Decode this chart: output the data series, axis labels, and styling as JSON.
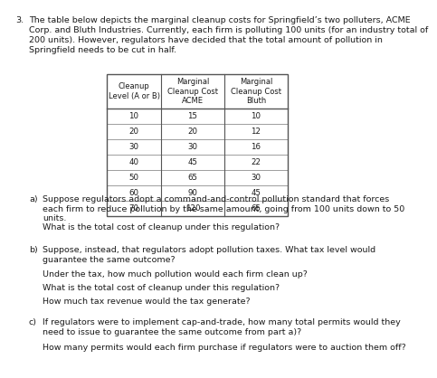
{
  "title_number": "3.",
  "title_lines": [
    "The table below depicts the marginal cleanup costs for Springfield’s two polluters, ACME",
    "Corp. and Bluth Industries. Currently, each firm is polluting 100 units (for an industry total of",
    "200 units). However, regulators have decided that the total amount of pollution in",
    "Springfield needs to be cut in half."
  ],
  "table_headers": [
    "Cleanup\nLevel (A or B)",
    "Marginal\nCleanup Cost\nACME",
    "Marginal\nCleanup Cost\nBluth"
  ],
  "table_data": [
    [
      "10",
      "15",
      "10"
    ],
    [
      "20",
      "20",
      "12"
    ],
    [
      "30",
      "30",
      "16"
    ],
    [
      "40",
      "45",
      "22"
    ],
    [
      "50",
      "65",
      "30"
    ],
    [
      "60",
      "90",
      "45"
    ],
    [
      "70",
      "120",
      "65"
    ]
  ],
  "bg_color": "#ffffff",
  "text_color": "#1a1a1a",
  "table_border_color": "#555555",
  "fs_title": 6.8,
  "fs_table_header": 6.0,
  "fs_table_data": 6.2,
  "fs_question": 6.8
}
